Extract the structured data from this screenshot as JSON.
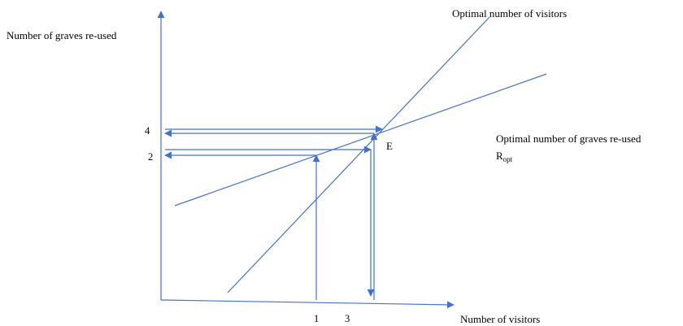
{
  "labels": {
    "y_axis": "Number of graves re-used",
    "x_axis": "Number of visitors",
    "line_visitors": "Optimal number of visitors",
    "line_graves": "Optimal number of graves re-used",
    "r_opt_main": "R",
    "r_opt_sub": "opt",
    "equilibrium": "E",
    "y_tick_4": "4",
    "y_tick_2": "2",
    "x_tick_1": "1",
    "x_tick_3": "3"
  },
  "colors": {
    "line": "#4472c4",
    "text": "#000000"
  }
}
